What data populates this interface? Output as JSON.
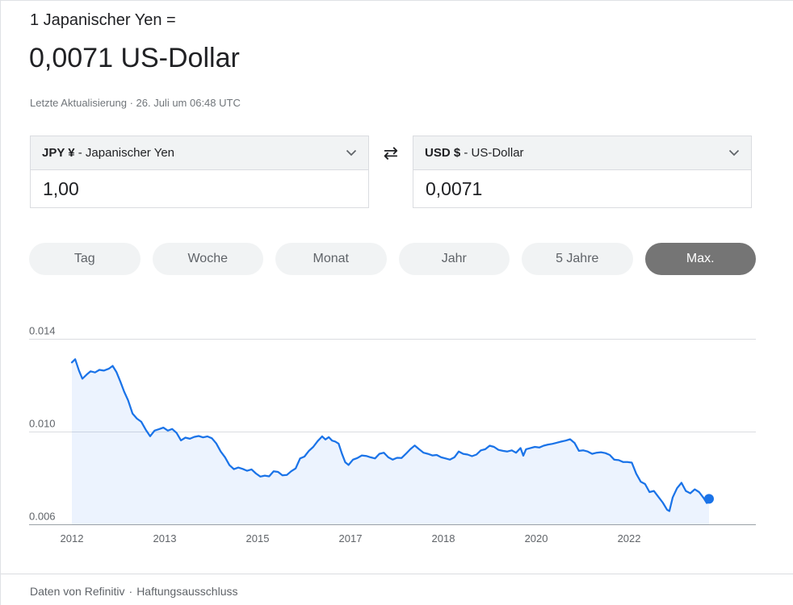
{
  "header": {
    "rate_label": "1 Japanischer Yen =",
    "rate_value": "0,0071 US-Dollar",
    "updated": "Letzte Aktualisierung · 26. Juli um 06:48 UTC"
  },
  "converter": {
    "from": {
      "code": "JPY ¥",
      "name": " - Japanischer Yen",
      "amount": "1,00"
    },
    "to": {
      "code": "USD $",
      "name": " - US-Dollar",
      "amount": "0,0071"
    }
  },
  "icons": {
    "swap": "⇄"
  },
  "range_buttons": [
    {
      "label": "Tag",
      "selected": false
    },
    {
      "label": "Woche",
      "selected": false
    },
    {
      "label": "Monat",
      "selected": false
    },
    {
      "label": "Jahr",
      "selected": false
    },
    {
      "label": "5 Jahre",
      "selected": false
    },
    {
      "label": "Max.",
      "selected": true
    }
  ],
  "chart_data": {
    "type": "line",
    "series": [
      {
        "name": "JPY/USD",
        "points": [
          [
            2012.0,
            0.01298
          ],
          [
            2012.06,
            0.01312
          ],
          [
            2012.13,
            0.01262
          ],
          [
            2012.19,
            0.01228
          ],
          [
            2012.27,
            0.01246
          ],
          [
            2012.34,
            0.0126
          ],
          [
            2012.42,
            0.01255
          ],
          [
            2012.5,
            0.01266
          ],
          [
            2012.58,
            0.01263
          ],
          [
            2012.67,
            0.01271
          ],
          [
            2012.74,
            0.01283
          ],
          [
            2012.81,
            0.01256
          ],
          [
            2012.88,
            0.01215
          ],
          [
            2012.95,
            0.01172
          ],
          [
            2013.02,
            0.01135
          ],
          [
            2013.1,
            0.01078
          ],
          [
            2013.18,
            0.01056
          ],
          [
            2013.26,
            0.01042
          ],
          [
            2013.34,
            0.01008
          ],
          [
            2013.42,
            0.0098
          ],
          [
            2013.5,
            0.01004
          ],
          [
            2013.58,
            0.0101
          ],
          [
            2013.66,
            0.01017
          ],
          [
            2013.74,
            0.01004
          ],
          [
            2013.82,
            0.01011
          ],
          [
            2013.9,
            0.00994
          ],
          [
            2013.98,
            0.00962
          ],
          [
            2014.06,
            0.00974
          ],
          [
            2014.14,
            0.00969
          ],
          [
            2014.22,
            0.00977
          ],
          [
            2014.3,
            0.00981
          ],
          [
            2014.38,
            0.00975
          ],
          [
            2014.46,
            0.00979
          ],
          [
            2014.54,
            0.00971
          ],
          [
            2014.62,
            0.00949
          ],
          [
            2014.7,
            0.00914
          ],
          [
            2014.78,
            0.00889
          ],
          [
            2014.86,
            0.00855
          ],
          [
            2014.94,
            0.00838
          ],
          [
            2015.02,
            0.00845
          ],
          [
            2015.1,
            0.00839
          ],
          [
            2015.18,
            0.00831
          ],
          [
            2015.26,
            0.00837
          ],
          [
            2015.34,
            0.00819
          ],
          [
            2015.42,
            0.00806
          ],
          [
            2015.5,
            0.0081
          ],
          [
            2015.58,
            0.00807
          ],
          [
            2015.66,
            0.00829
          ],
          [
            2015.74,
            0.00826
          ],
          [
            2015.82,
            0.00811
          ],
          [
            2015.9,
            0.00813
          ],
          [
            2015.98,
            0.00829
          ],
          [
            2016.06,
            0.00841
          ],
          [
            2016.14,
            0.00884
          ],
          [
            2016.22,
            0.00892
          ],
          [
            2016.3,
            0.00917
          ],
          [
            2016.38,
            0.00934
          ],
          [
            2016.46,
            0.00959
          ],
          [
            2016.54,
            0.00979
          ],
          [
            2016.6,
            0.00966
          ],
          [
            2016.66,
            0.00976
          ],
          [
            2016.72,
            0.00961
          ],
          [
            2016.78,
            0.00957
          ],
          [
            2016.84,
            0.00948
          ],
          [
            2016.9,
            0.00905
          ],
          [
            2016.96,
            0.00868
          ],
          [
            2017.02,
            0.00856
          ],
          [
            2017.1,
            0.00879
          ],
          [
            2017.18,
            0.00886
          ],
          [
            2017.26,
            0.00897
          ],
          [
            2017.34,
            0.00895
          ],
          [
            2017.42,
            0.00889
          ],
          [
            2017.5,
            0.00884
          ],
          [
            2017.58,
            0.00904
          ],
          [
            2017.66,
            0.00909
          ],
          [
            2017.74,
            0.00889
          ],
          [
            2017.82,
            0.00879
          ],
          [
            2017.9,
            0.00887
          ],
          [
            2017.98,
            0.00886
          ],
          [
            2018.06,
            0.00904
          ],
          [
            2018.14,
            0.00924
          ],
          [
            2018.22,
            0.0094
          ],
          [
            2018.3,
            0.00924
          ],
          [
            2018.38,
            0.00909
          ],
          [
            2018.46,
            0.00904
          ],
          [
            2018.54,
            0.00897
          ],
          [
            2018.62,
            0.00899
          ],
          [
            2018.7,
            0.00889
          ],
          [
            2018.78,
            0.00884
          ],
          [
            2018.86,
            0.00879
          ],
          [
            2018.94,
            0.00889
          ],
          [
            2019.02,
            0.00914
          ],
          [
            2019.1,
            0.00904
          ],
          [
            2019.18,
            0.00901
          ],
          [
            2019.26,
            0.00894
          ],
          [
            2019.34,
            0.00901
          ],
          [
            2019.42,
            0.00919
          ],
          [
            2019.5,
            0.00924
          ],
          [
            2019.58,
            0.00939
          ],
          [
            2019.66,
            0.00934
          ],
          [
            2019.74,
            0.00921
          ],
          [
            2019.82,
            0.00917
          ],
          [
            2019.9,
            0.00914
          ],
          [
            2019.98,
            0.00919
          ],
          [
            2020.06,
            0.00909
          ],
          [
            2020.14,
            0.00929
          ],
          [
            2020.19,
            0.00896
          ],
          [
            2020.24,
            0.00924
          ],
          [
            2020.32,
            0.00929
          ],
          [
            2020.4,
            0.00934
          ],
          [
            2020.48,
            0.00931
          ],
          [
            2020.56,
            0.00939
          ],
          [
            2020.64,
            0.00944
          ],
          [
            2020.72,
            0.00947
          ],
          [
            2020.8,
            0.00952
          ],
          [
            2020.88,
            0.00957
          ],
          [
            2020.96,
            0.00961
          ],
          [
            2021.04,
            0.00967
          ],
          [
            2021.12,
            0.00951
          ],
          [
            2021.2,
            0.00917
          ],
          [
            2021.28,
            0.00919
          ],
          [
            2021.36,
            0.00914
          ],
          [
            2021.44,
            0.00904
          ],
          [
            2021.52,
            0.00909
          ],
          [
            2021.6,
            0.00911
          ],
          [
            2021.68,
            0.00907
          ],
          [
            2021.76,
            0.00899
          ],
          [
            2021.84,
            0.00879
          ],
          [
            2021.92,
            0.00877
          ],
          [
            2022.0,
            0.00869
          ],
          [
            2022.08,
            0.00869
          ],
          [
            2022.16,
            0.00866
          ],
          [
            2022.24,
            0.00818
          ],
          [
            2022.32,
            0.00784
          ],
          [
            2022.4,
            0.00774
          ],
          [
            2022.48,
            0.00739
          ],
          [
            2022.56,
            0.00744
          ],
          [
            2022.64,
            0.00719
          ],
          [
            2022.72,
            0.00694
          ],
          [
            2022.8,
            0.00663
          ],
          [
            2022.84,
            0.00657
          ],
          [
            2022.9,
            0.00716
          ],
          [
            2022.98,
            0.00756
          ],
          [
            2023.06,
            0.00779
          ],
          [
            2023.14,
            0.00744
          ],
          [
            2023.22,
            0.00734
          ],
          [
            2023.3,
            0.00751
          ],
          [
            2023.38,
            0.00739
          ],
          [
            2023.46,
            0.00714
          ],
          [
            2023.52,
            0.00692
          ],
          [
            2023.56,
            0.0071
          ]
        ]
      }
    ],
    "x_ticks": [
      {
        "label": "2012",
        "t": 2012.0
      },
      {
        "label": "2013",
        "t": 2013.685
      },
      {
        "label": "2015",
        "t": 2015.37
      },
      {
        "label": "2017",
        "t": 2017.055
      },
      {
        "label": "2018",
        "t": 2018.74
      },
      {
        "label": "2020",
        "t": 2020.425
      },
      {
        "label": "2022",
        "t": 2022.11
      }
    ],
    "y_ticks": [
      {
        "label": "0.014",
        "v": 0.014
      },
      {
        "label": "0.010",
        "v": 0.01
      },
      {
        "label": "0.006",
        "v": 0.006
      }
    ],
    "xlim": [
      2012.0,
      2023.56
    ],
    "ylim": [
      0.006,
      0.014
    ],
    "line_color": "#1a73e8",
    "area_color": "rgba(66,133,244,0.10)",
    "gridline_color": "#dadce0",
    "axis_color": "#9aa0a6",
    "end_dot": true
  },
  "footer": {
    "source": "Daten von Refinitiv",
    "separator": "·",
    "disclaimer_link": "Haftungsausschluss"
  }
}
